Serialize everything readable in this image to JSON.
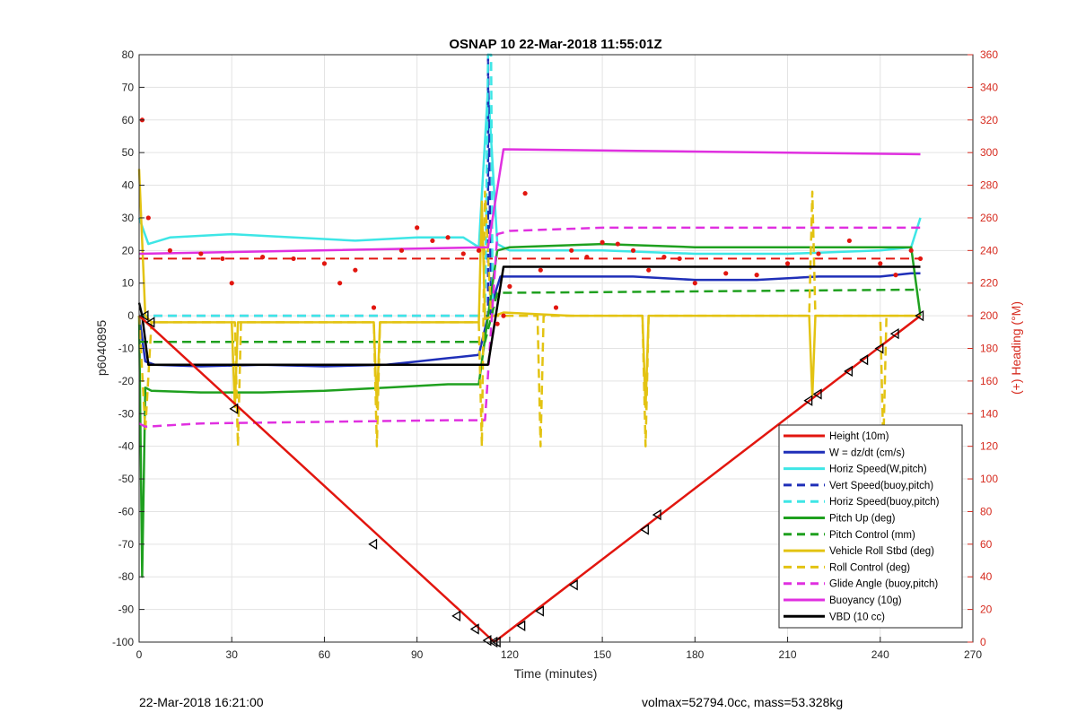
{
  "chart_data": {
    "type": "line",
    "title": "OSNAP 10 22-Mar-2018 11:55:01Z",
    "xlabel": "Time (minutes)",
    "ylabel": "p6040895",
    "y2label": "(+) Heading (°M)",
    "xlim": [
      0,
      270
    ],
    "ylim": [
      -100,
      80
    ],
    "y2lim": [
      0,
      360
    ],
    "xticks": [
      "0",
      "30",
      "60",
      "90",
      "120",
      "150",
      "180",
      "210",
      "240",
      "270"
    ],
    "yticks": [
      "-100",
      "-90",
      "-80",
      "-70",
      "-60",
      "-50",
      "-40",
      "-30",
      "-20",
      "-10",
      "0",
      "10",
      "20",
      "30",
      "40",
      "50",
      "60",
      "70",
      "80"
    ],
    "y2ticks": [
      "0",
      "20",
      "40",
      "60",
      "80",
      "100",
      "120",
      "140",
      "160",
      "180",
      "200",
      "220",
      "240",
      "260",
      "280",
      "300",
      "320",
      "340",
      "360"
    ],
    "grid": true,
    "legend_position": "bottom-right",
    "colors": {
      "red": "#e2160f",
      "blue": "#1f2fb8",
      "cyan": "#3ee6e6",
      "green": "#1fa01f",
      "yellow": "#e3c312",
      "magenta": "#e030e0",
      "black": "#000000",
      "axis_right": "#d62a1e"
    },
    "series": [
      {
        "name": "Height (10m)",
        "color": "red",
        "style": "solid",
        "x": [
          0,
          115,
          253
        ],
        "y": [
          0,
          -100,
          0
        ]
      },
      {
        "name": "W = dz/dt (cm/s)",
        "color": "blue",
        "style": "solid",
        "x": [
          0,
          2,
          5,
          20,
          40,
          60,
          80,
          90,
          100,
          110,
          113,
          117,
          120,
          140,
          160,
          180,
          200,
          220,
          240,
          250,
          253
        ],
        "y": [
          0,
          -14,
          -15,
          -15.5,
          -15,
          -15.5,
          -15,
          -14,
          -13,
          -12,
          0,
          12,
          12,
          12,
          12,
          11,
          11,
          12,
          12,
          13,
          13
        ]
      },
      {
        "name": "Horiz Speed(W,pitch)",
        "color": "cyan",
        "style": "solid",
        "x": [
          0,
          3,
          10,
          30,
          50,
          70,
          90,
          105,
          110,
          113,
          116,
          120,
          150,
          180,
          210,
          240,
          250,
          253
        ],
        "y": [
          30,
          22,
          24,
          25,
          24,
          23,
          24,
          24,
          21,
          70,
          22,
          20,
          20,
          19,
          19,
          20,
          21,
          30
        ]
      },
      {
        "name": "Vert Speed(buoy,pitch)",
        "color": "blue",
        "style": "dashed",
        "x": [
          0,
          113,
          113,
          114
        ],
        "y": [
          0,
          0,
          80,
          0
        ]
      },
      {
        "name": "Horiz Speed(buoy,pitch)",
        "color": "cyan",
        "style": "dashed",
        "x": [
          0,
          112,
          113,
          114,
          114.5
        ],
        "y": [
          0,
          0,
          80,
          80,
          0
        ]
      },
      {
        "name": "Pitch Up (deg)",
        "color": "green",
        "style": "solid",
        "x": [
          0,
          1,
          2,
          4,
          20,
          40,
          60,
          80,
          100,
          110,
          113,
          116,
          120,
          150,
          180,
          210,
          240,
          250,
          253
        ],
        "y": [
          0,
          -80,
          -22,
          -23,
          -23.5,
          -23.5,
          -23,
          -22,
          -21,
          -21,
          0,
          20,
          21,
          22,
          21,
          21,
          21,
          21,
          0
        ]
      },
      {
        "name": "Pitch Control (mm)",
        "color": "green",
        "style": "dashed",
        "x": [
          0,
          112,
          116,
          253
        ],
        "y": [
          -8,
          -8,
          7,
          8
        ]
      },
      {
        "name": "Vehicle Roll Stbd (deg)",
        "color": "yellow",
        "style": "solid",
        "x": [
          0,
          2,
          4,
          30,
          31,
          32,
          76,
          77,
          78,
          110,
          111,
          112,
          118,
          140,
          163,
          164,
          165,
          200,
          217,
          218,
          219,
          240,
          253
        ],
        "y": [
          45,
          0,
          -2,
          -2,
          -28,
          -2,
          -2,
          -28,
          -2,
          -2,
          35,
          -1,
          1,
          0,
          0,
          -28,
          0,
          0,
          0,
          -25,
          0,
          0,
          0
        ]
      },
      {
        "name": "Roll Control (deg)",
        "color": "yellow",
        "style": "dashed",
        "x": [
          0,
          2,
          4,
          31,
          32,
          33,
          76,
          77,
          78,
          110,
          111,
          112,
          114,
          129,
          130,
          131,
          163,
          164,
          165,
          217,
          218,
          219,
          240,
          241,
          242,
          253
        ],
        "y": [
          0,
          -35,
          -2,
          -2,
          -40,
          -2,
          -2,
          -40,
          -2,
          -2,
          -40,
          38,
          0,
          0,
          -40,
          0,
          0,
          -40,
          0,
          0,
          38,
          0,
          0,
          -40,
          0,
          0
        ]
      },
      {
        "name": "Glide Angle (buoy,pitch)",
        "color": "magenta",
        "style": "dashed",
        "x": [
          0,
          2,
          20,
          60,
          100,
          112,
          116,
          120,
          150,
          180,
          210,
          240,
          253
        ],
        "y": [
          -33,
          -34,
          -33,
          -32.5,
          -32,
          -32,
          25,
          26,
          27,
          27,
          27,
          27,
          27
        ]
      },
      {
        "name": "Buoyancy (10g)",
        "color": "magenta",
        "style": "solid",
        "x": [
          0,
          113,
          118,
          253
        ],
        "y": [
          19,
          21,
          51,
          49.5
        ]
      },
      {
        "name": "VBD (10 cc)",
        "color": "black",
        "style": "solid",
        "x": [
          0,
          1,
          3,
          113,
          118,
          253
        ],
        "y": [
          4,
          0,
          -15,
          -15,
          15,
          15
        ]
      }
    ],
    "heading_series": {
      "name": "Heading",
      "color": "red",
      "style": "dots",
      "axis": "right",
      "x": [
        1,
        3,
        10,
        20,
        27,
        30,
        40,
        50,
        60,
        65,
        70,
        76,
        85,
        90,
        95,
        100,
        105,
        110,
        116,
        118,
        120,
        125,
        130,
        135,
        140,
        145,
        150,
        155,
        160,
        165,
        170,
        175,
        180,
        190,
        200,
        210,
        220,
        230,
        240,
        245,
        250,
        253
      ],
      "y": [
        320,
        260,
        240,
        238,
        235,
        220,
        236,
        235,
        232,
        220,
        228,
        205,
        240,
        254,
        246,
        248,
        238,
        240,
        195,
        200,
        218,
        275,
        228,
        205,
        240,
        236,
        245,
        244,
        240,
        228,
        236,
        235,
        220,
        226,
        225,
        232,
        238,
        246,
        232,
        225,
        240,
        235
      ]
    },
    "heading_reference": {
      "axis": "right",
      "value": 235,
      "color": "red",
      "style": "dashed"
    },
    "height_markers": {
      "x": [
        2,
        4,
        31,
        76,
        103,
        109,
        113,
        115,
        116,
        124,
        130,
        141,
        164,
        168,
        217,
        220,
        230,
        235,
        240,
        245,
        253
      ],
      "y": [
        0,
        -2,
        -28.5,
        -70,
        -92,
        -96,
        -99.5,
        -100,
        -100,
        -95,
        -90.5,
        -82.5,
        -65.5,
        -61,
        -26,
        -24,
        -17,
        -13.5,
        -10,
        -5.5,
        0
      ]
    }
  },
  "footer": {
    "left": "22-Mar-2018 16:21:00",
    "right": "volmax=52794.0cc, mass=53.328kg"
  }
}
